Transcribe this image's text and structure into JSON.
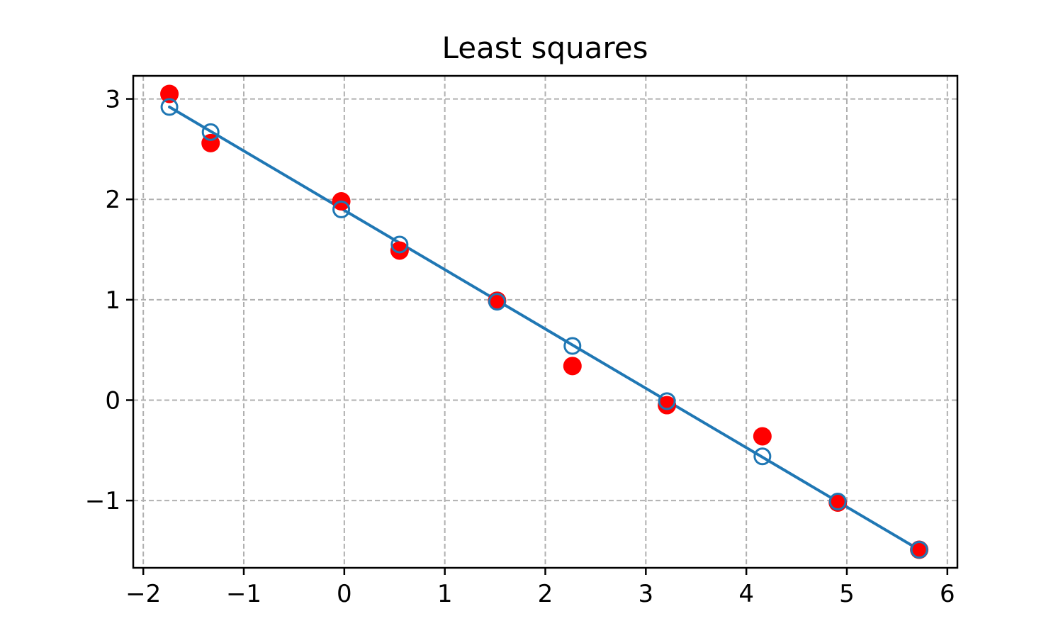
{
  "chart_data": {
    "type": "scatter",
    "title": "Least squares",
    "xlabel": "",
    "ylabel": "",
    "xlim": [
      -2.1,
      6.1
    ],
    "ylim": [
      -1.67,
      3.23
    ],
    "xticks": [
      -2,
      -1,
      0,
      1,
      2,
      3,
      4,
      5,
      6
    ],
    "yticks": [
      -1,
      0,
      1,
      2,
      3
    ],
    "xtick_labels": [
      "−2",
      "−1",
      "0",
      "1",
      "2",
      "3",
      "4",
      "5",
      "6"
    ],
    "ytick_labels": [
      "−1",
      "0",
      "1",
      "2",
      "3"
    ],
    "grid": true,
    "series": [
      {
        "kind": "points",
        "marker": "filled-circle",
        "color": "#ff0000",
        "x": [
          -1.74,
          -1.33,
          -0.03,
          0.55,
          1.52,
          2.27,
          3.21,
          4.16,
          4.91,
          5.72
        ],
        "y": [
          3.05,
          2.56,
          1.98,
          1.49,
          0.99,
          0.34,
          -0.05,
          -0.36,
          -1.02,
          -1.49
        ]
      },
      {
        "kind": "line",
        "color": "#1f77b4",
        "x": [
          -1.74,
          5.72
        ],
        "y": [
          2.92,
          -1.49
        ]
      },
      {
        "kind": "points",
        "marker": "open-circle",
        "color": "#1f77b4",
        "x": [
          -1.74,
          -1.33,
          -0.03,
          0.55,
          1.52,
          2.27,
          3.21,
          4.16,
          4.91,
          5.72
        ],
        "y": [
          2.92,
          2.67,
          1.9,
          1.55,
          0.98,
          0.54,
          -0.01,
          -0.56,
          -1.01,
          -1.49
        ]
      }
    ]
  }
}
